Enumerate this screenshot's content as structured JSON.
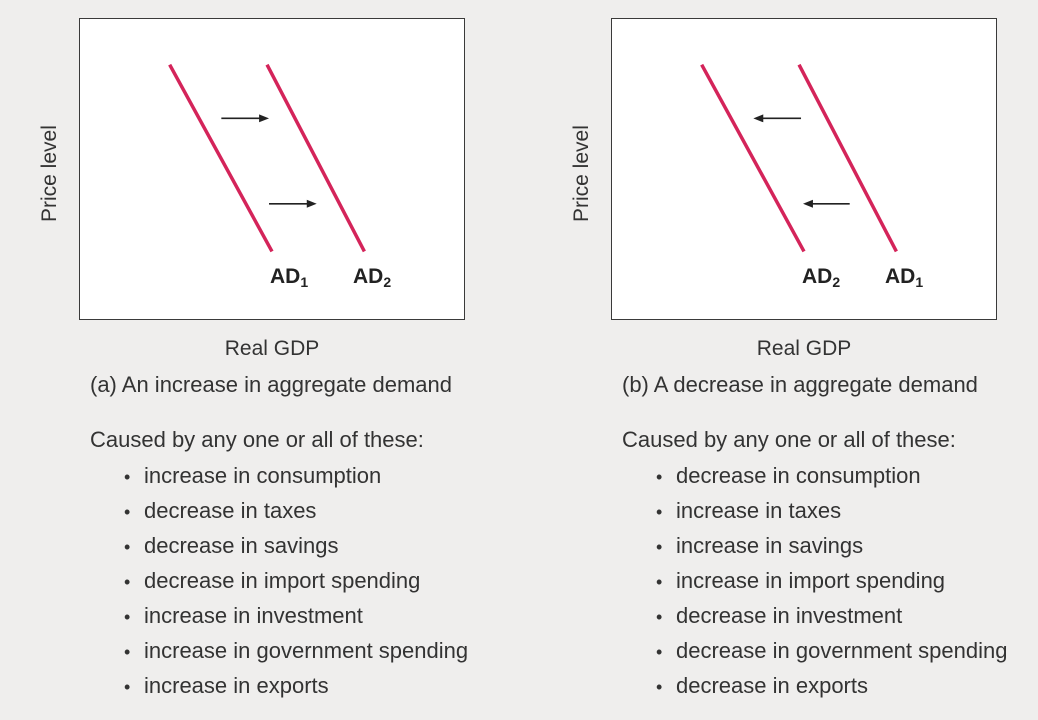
{
  "panels": [
    {
      "id": "a",
      "ylabel": "Price level",
      "xlabel": "Real GDP",
      "caption": "(a) An increase in aggregate demand",
      "curves": [
        {
          "name": "AD",
          "sub": "1"
        },
        {
          "name": "AD",
          "sub": "2"
        }
      ],
      "shift_direction": "right",
      "cause_heading": "Caused by any one or all of these:",
      "causes": [
        "increase in consumption",
        "decrease in taxes",
        "decrease in savings",
        "decrease in import spending",
        "increase in investment",
        "increase in government spending",
        "increase in exports"
      ]
    },
    {
      "id": "b",
      "ylabel": "Price level",
      "xlabel": "Real GDP",
      "caption": "(b) A decrease in aggregate demand",
      "curves": [
        {
          "name": "AD",
          "sub": "2"
        },
        {
          "name": "AD",
          "sub": "1"
        }
      ],
      "shift_direction": "left",
      "cause_heading": "Caused by any one or all of these:",
      "causes": [
        "decrease in consumption",
        "increase in taxes",
        "increase in savings",
        "increase in import spending",
        "decrease in investment",
        "decrease in government spending",
        "decrease in exports"
      ]
    }
  ],
  "colors": {
    "curve": "#d4245a",
    "arrow": "#222222"
  }
}
